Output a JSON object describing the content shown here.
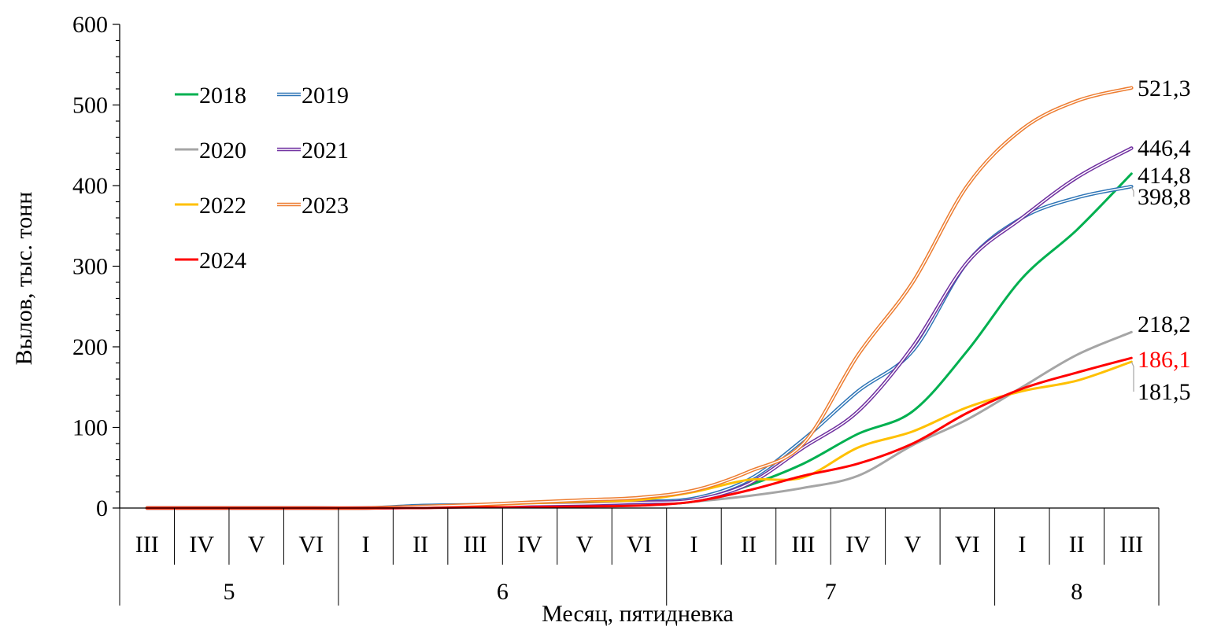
{
  "chart_data": {
    "type": "line",
    "title": "",
    "xlabel": "Месяц, пятидневка",
    "ylabel": "Вылов, тыс. тонн",
    "ylim": [
      0,
      600
    ],
    "yticks": [
      "0",
      "100",
      "200",
      "300",
      "400",
      "500",
      "600"
    ],
    "grid": false,
    "legend_position": "top-left",
    "categories": [
      "III",
      "IV",
      "V",
      "VI",
      "I",
      "II",
      "III",
      "IV",
      "V",
      "VI",
      "I",
      "II",
      "III",
      "IV",
      "V",
      "VI",
      "I",
      "II",
      "III"
    ],
    "months": [
      {
        "label": "5",
        "span": 4
      },
      {
        "label": "6",
        "span": 6
      },
      {
        "label": "7",
        "span": 6
      },
      {
        "label": "8",
        "span": 3
      }
    ],
    "series": [
      {
        "name": "2018",
        "color": "#00B050",
        "double": false,
        "values": [
          0,
          0,
          0,
          0,
          0,
          1,
          2,
          3,
          4,
          5,
          8,
          28,
          55,
          92,
          120,
          195,
          285,
          345,
          414.8
        ]
      },
      {
        "name": "2019",
        "color": "#2E75B6",
        "double": true,
        "values": [
          0,
          0,
          0,
          0,
          0,
          3,
          4,
          5,
          6,
          8,
          12,
          35,
          85,
          145,
          195,
          305,
          360,
          385,
          398.8
        ]
      },
      {
        "name": "2020",
        "color": "#A5A5A5",
        "double": false,
        "values": [
          0,
          0,
          0,
          0,
          0,
          1,
          1,
          2,
          3,
          4,
          8,
          15,
          25,
          40,
          78,
          110,
          150,
          190,
          218.2
        ]
      },
      {
        "name": "2021",
        "color": "#7030A0",
        "double": true,
        "values": [
          0,
          0,
          0,
          0,
          0,
          1,
          2,
          4,
          5,
          7,
          10,
          30,
          75,
          120,
          200,
          305,
          360,
          410,
          446.4
        ]
      },
      {
        "name": "2022",
        "color": "#FFC000",
        "double": false,
        "values": [
          0,
          0,
          0,
          0,
          0,
          1,
          3,
          6,
          8,
          10,
          20,
          35,
          38,
          75,
          95,
          125,
          145,
          158,
          181.5
        ]
      },
      {
        "name": "2023",
        "color": "#ED7D31",
        "double": true,
        "values": [
          0,
          0,
          0,
          0,
          0,
          2,
          4,
          7,
          10,
          13,
          22,
          45,
          80,
          190,
          280,
          400,
          470,
          505,
          521.3
        ]
      },
      {
        "name": "2024",
        "color": "#FF0000",
        "double": false,
        "values": [
          0,
          0,
          0,
          0,
          0,
          0,
          1,
          1,
          2,
          3,
          8,
          22,
          40,
          55,
          80,
          118,
          148,
          168,
          186.1
        ]
      }
    ],
    "end_labels": [
      {
        "series": "2023",
        "text": "521,3",
        "color": "#000000"
      },
      {
        "series": "2021",
        "text": "446,4",
        "color": "#000000"
      },
      {
        "series": "2018",
        "text": "414,8",
        "color": "#000000"
      },
      {
        "series": "2019",
        "text": "398,8",
        "color": "#000000"
      },
      {
        "series": "2020",
        "text": "218,2",
        "color": "#000000"
      },
      {
        "series": "2024",
        "text": "186,1",
        "color": "#FF0000"
      },
      {
        "series": "2022",
        "text": "181,5",
        "color": "#000000"
      }
    ]
  }
}
